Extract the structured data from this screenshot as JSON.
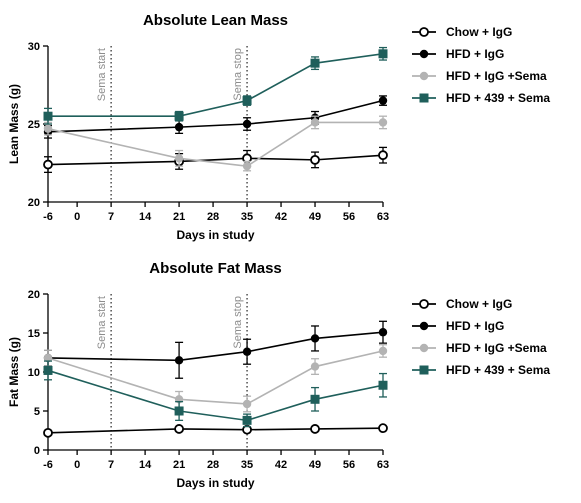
{
  "chart_data": [
    {
      "type": "line",
      "title": "Absolute Lean Mass",
      "xlabel": "Days in study",
      "ylabel": "Lean Mass (g)",
      "xlim": [
        -6,
        63
      ],
      "ylim": [
        20,
        30
      ],
      "xticks": [
        -6,
        0,
        7,
        14,
        21,
        28,
        35,
        42,
        49,
        56,
        63
      ],
      "xtick_labels": [
        "-6",
        "0",
        "7",
        "14",
        "21",
        "28",
        "35",
        "42",
        "49",
        "56",
        "63"
      ],
      "yticks": [
        20,
        25,
        30
      ],
      "ytick_labels": [
        "20",
        "25",
        "30"
      ],
      "annotations": [
        {
          "text": "Sema start",
          "x": 7
        },
        {
          "text": "Sema stop",
          "x": 35
        }
      ],
      "legend_position": "right",
      "series": [
        {
          "name": "Chow + IgG",
          "marker": "open-circle",
          "color": "#000000",
          "x": [
            -6,
            21,
            35,
            49,
            63
          ],
          "y": [
            22.4,
            22.6,
            22.8,
            22.7,
            23.0
          ],
          "err": [
            0.5,
            0.5,
            0.5,
            0.5,
            0.5
          ]
        },
        {
          "name": "HFD + IgG",
          "marker": "filled-circle",
          "color": "#000000",
          "x": [
            -6,
            21,
            35,
            49,
            63
          ],
          "y": [
            24.5,
            24.8,
            25.0,
            25.4,
            26.5
          ],
          "err": [
            0.4,
            0.4,
            0.4,
            0.4,
            0.3
          ]
        },
        {
          "name": "HFD + IgG +Sema",
          "marker": "filled-circle",
          "color": "#b3b3b3",
          "x": [
            -6,
            21,
            35,
            49,
            63
          ],
          "y": [
            24.7,
            22.8,
            22.3,
            25.1,
            25.1
          ],
          "err": [
            0.4,
            0.5,
            0.3,
            0.4,
            0.4
          ]
        },
        {
          "name": "HFD + 439 + Sema",
          "marker": "filled-square",
          "color": "#1f5f5b",
          "x": [
            -6,
            21,
            35,
            49,
            63
          ],
          "y": [
            25.5,
            25.5,
            26.5,
            28.9,
            29.5
          ],
          "err": [
            0.5,
            0.3,
            0.3,
            0.4,
            0.4
          ]
        }
      ]
    },
    {
      "type": "line",
      "title": "Absolute Fat Mass",
      "xlabel": "Days in study",
      "ylabel": "Fat Mass (g)",
      "xlim": [
        -6,
        63
      ],
      "ylim": [
        0,
        20
      ],
      "xticks": [
        -6,
        0,
        7,
        14,
        21,
        28,
        35,
        42,
        49,
        56,
        63
      ],
      "xtick_labels": [
        "-6",
        "0",
        "7",
        "14",
        "21",
        "28",
        "35",
        "42",
        "49",
        "56",
        "63"
      ],
      "yticks": [
        0,
        5,
        10,
        15,
        20
      ],
      "ytick_labels": [
        "0",
        "5",
        "10",
        "15",
        "20"
      ],
      "annotations": [
        {
          "text": "Sema start",
          "x": 7
        },
        {
          "text": "Sema stop",
          "x": 35
        }
      ],
      "legend_position": "right",
      "series": [
        {
          "name": "Chow + IgG",
          "marker": "open-circle",
          "color": "#000000",
          "x": [
            -6,
            21,
            35,
            49,
            63
          ],
          "y": [
            2.2,
            2.7,
            2.6,
            2.7,
            2.8
          ],
          "err": [
            0.2,
            0.2,
            0.2,
            0.2,
            0.2
          ]
        },
        {
          "name": "HFD + IgG",
          "marker": "filled-circle",
          "color": "#000000",
          "x": [
            -6,
            21,
            35,
            49,
            63
          ],
          "y": [
            11.8,
            11.5,
            12.6,
            14.3,
            15.1
          ],
          "err": [
            1.0,
            2.3,
            1.6,
            1.6,
            1.4
          ]
        },
        {
          "name": "HFD + IgG +Sema",
          "marker": "filled-circle",
          "color": "#b3b3b3",
          "x": [
            -6,
            21,
            35,
            49,
            63
          ],
          "y": [
            11.8,
            6.5,
            5.9,
            10.7,
            12.7
          ],
          "err": [
            1.0,
            1.0,
            1.0,
            1.0,
            0.8
          ]
        },
        {
          "name": "HFD + 439 + Sema",
          "marker": "filled-square",
          "color": "#1f5f5b",
          "x": [
            -6,
            21,
            35,
            49,
            63
          ],
          "y": [
            10.2,
            5.0,
            3.8,
            6.5,
            8.3
          ],
          "err": [
            1.2,
            1.2,
            0.8,
            1.5,
            1.5
          ]
        }
      ]
    }
  ]
}
